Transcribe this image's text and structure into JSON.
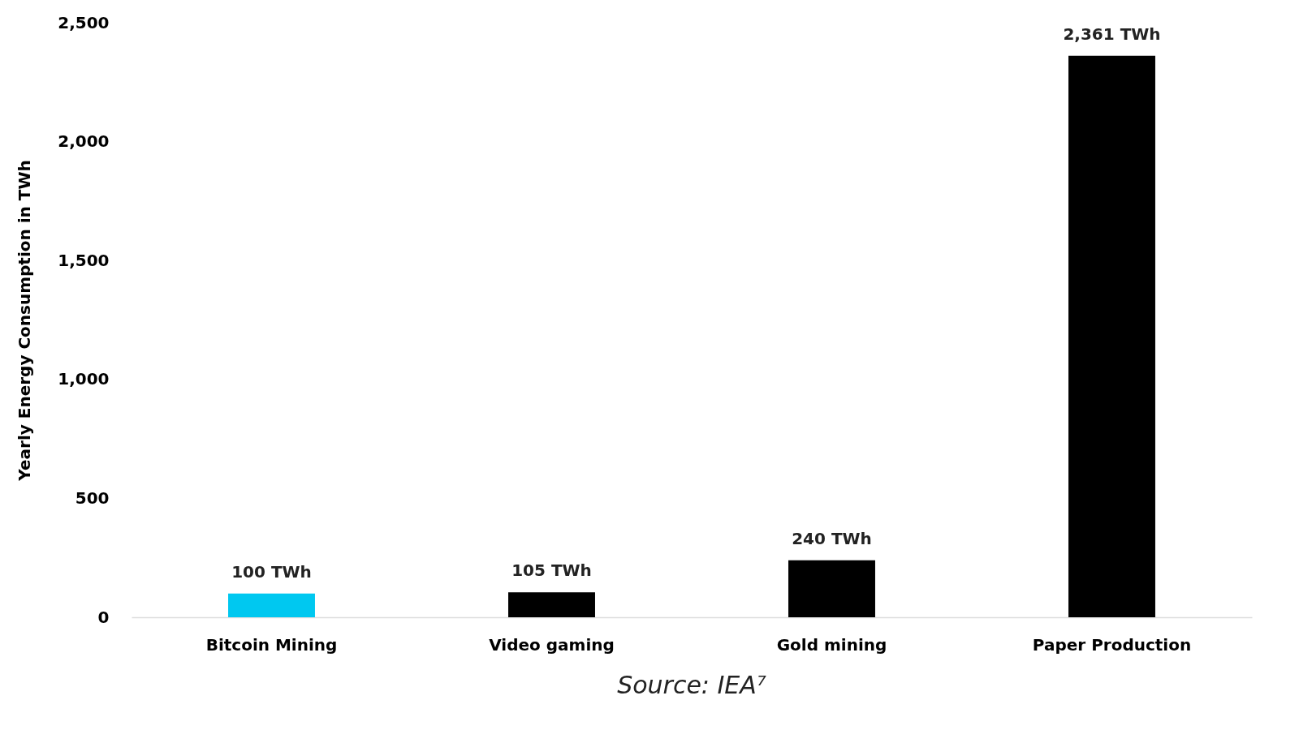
{
  "chart_data": {
    "type": "bar",
    "categories": [
      "Bitcoin Mining",
      "Video gaming",
      "Gold mining",
      "Paper Production"
    ],
    "values": [
      100,
      105,
      240,
      2361
    ],
    "colors": [
      "#00c8f0",
      "#000000",
      "#000000",
      "#000000"
    ],
    "value_labels": [
      "100 TWh",
      "105 TWh",
      "240 TWh",
      "2,361 TWh"
    ],
    "ylabel": "Yearly Energy Consumption in TWh",
    "ylim": [
      0,
      2500
    ],
    "yticks": [
      0,
      500,
      {
        "value": 1000,
        "label": "1,000"
      },
      {
        "value": 1500,
        "label": "1,500"
      },
      {
        "value": 2000,
        "label": "2,000"
      },
      {
        "value": 2500,
        "label": "2,500"
      }
    ],
    "grid": false,
    "legend": false,
    "annotations": [
      "Source: IEA⁷"
    ]
  }
}
